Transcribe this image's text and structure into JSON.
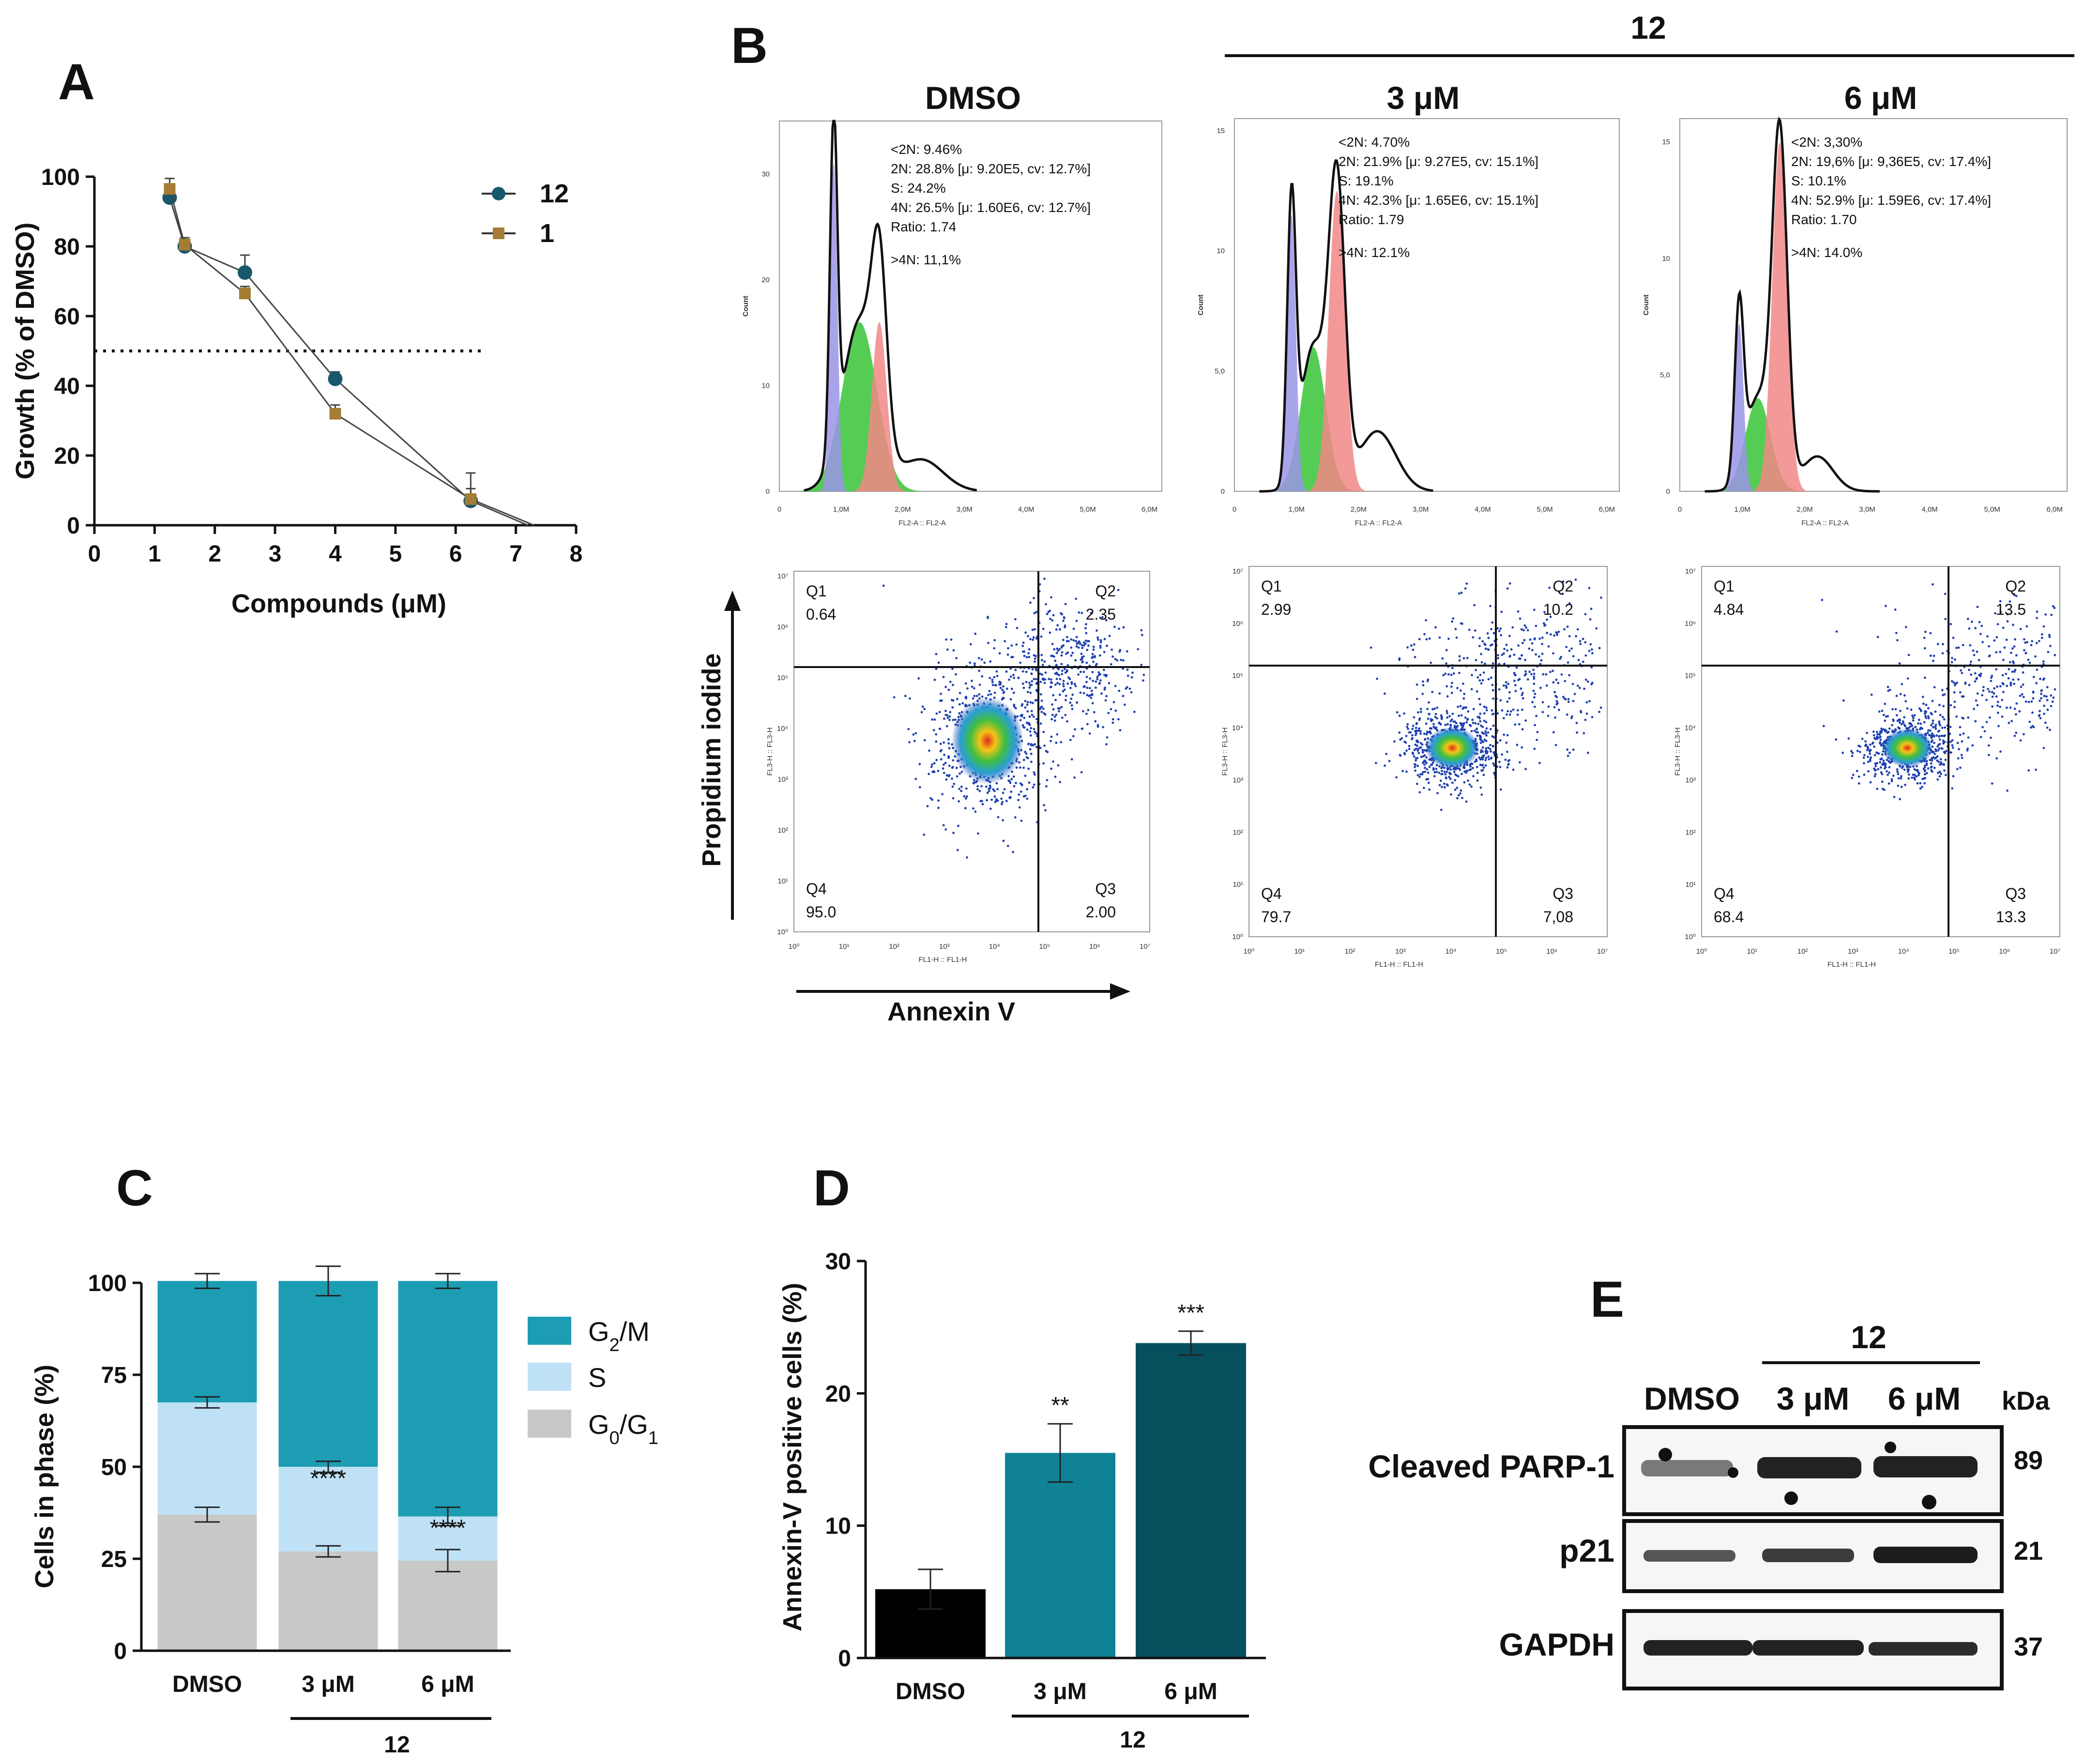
{
  "panel_labels": {
    "A": "A",
    "B": "B",
    "C": "C",
    "D": "D",
    "E": "E"
  },
  "colors": {
    "c12": "#17586b",
    "c1": "#a57c34",
    "g2m": "#1d9db3",
    "s": "#bfe1f5",
    "g01": "#c8c8c8",
    "d_dmso": "#000000",
    "d_3": "#0f8296",
    "d_6": "#06505e",
    "g1peak": "#9a94e6",
    "speak": "#37c437",
    "g2peak": "#f28787"
  },
  "chart_data": [
    {
      "panel": "A",
      "type": "line",
      "xlabel": "Compounds (μM)",
      "ylabel": "Growth (% of DMSO)",
      "xlim": [
        0,
        8
      ],
      "ylim": [
        0,
        100
      ],
      "xticks": [
        "0",
        "1",
        "2",
        "3",
        "4",
        "5",
        "6",
        "7",
        "8"
      ],
      "yticks": [
        "0",
        "20",
        "40",
        "60",
        "80",
        "100"
      ],
      "reference_line": {
        "y": 50,
        "style": "dotted"
      },
      "legend": [
        "12",
        "1"
      ],
      "series": [
        {
          "name": "12",
          "x": [
            1.25,
            1.5,
            2.5,
            4,
            6.25,
            7.2
          ],
          "y": [
            94,
            80,
            72.5,
            42,
            7,
            0
          ],
          "err": [
            3,
            2,
            5,
            2,
            8,
            0
          ]
        },
        {
          "name": "1",
          "x": [
            1.25,
            1.5,
            2.5,
            4,
            6.25,
            7.3
          ],
          "y": [
            96.5,
            80.5,
            66.5,
            32,
            7.5,
            0
          ],
          "err": [
            3,
            2,
            2,
            2.5,
            3,
            0
          ]
        }
      ]
    },
    {
      "panel": "B-cell-cycle",
      "type": "histogram",
      "column_labels": [
        "DMSO",
        "3 μM",
        "6 μM"
      ],
      "group_label": "12",
      "xlabel": "FL2-A :: FL2-A",
      "ylabel": "Count",
      "xticks": [
        "0",
        "1,0M",
        "2,0M",
        "3,0M",
        "4,0M",
        "5,0M",
        "6,0M"
      ],
      "samples": [
        {
          "name": "DMSO",
          "yticks": [
            "0",
            "10",
            "20",
            "30"
          ],
          "stats": [
            "<2N: 9.46%",
            "2N: 28.8%   [μ: 9.20E5, cv: 12.7%]",
            "S: 24.2%",
            "4N: 26.5%   [μ: 1.60E6, cv: 12.7%]",
            "Ratio: 1.74",
            ">4N: 11,1%"
          ]
        },
        {
          "name": "3 μM",
          "yticks": [
            "0",
            "5,0",
            "10",
            "15"
          ],
          "stats": [
            "<2N: 4.70%",
            "2N: 21.9%   [μ: 9.27E5, cv: 15.1%]",
            "S: 19.1%",
            "4N: 42.3%   [μ: 1.65E6, cv: 15.1%]",
            "Ratio: 1.79",
            ">4N: 12.1%"
          ]
        },
        {
          "name": "6 μM",
          "yticks": [
            "0",
            "5,0",
            "10",
            "15"
          ],
          "stats": [
            "<2N: 3,30%",
            "2N: 19,6%   [μ: 9,36E5, cv: 17.4%]",
            "S: 10.1%",
            "4N: 52.9%   [μ: 1.59E6, cv: 17.4%]",
            "Ratio: 1.70",
            ">4N: 14.0%"
          ]
        }
      ]
    },
    {
      "panel": "B-annexin",
      "type": "scatter",
      "xlabel": "Annexin V",
      "ylabel": "Propidium iodide",
      "axis_x_small": "FL1-H :: FL1-H",
      "axis_y_small": "FL3-H :: FL3-H",
      "ticks": [
        "10⁰",
        "10¹",
        "10²",
        "10³",
        "10⁴",
        "10⁵",
        "10⁶",
        "10⁷"
      ],
      "quadrant_names": [
        "Q1",
        "Q2",
        "Q3",
        "Q4"
      ],
      "samples": [
        {
          "name": "DMSO",
          "Q1": "0.64",
          "Q2": "2.35",
          "Q3": "2.00",
          "Q4": "95.0"
        },
        {
          "name": "3 μM",
          "Q1": "2.99",
          "Q2": "10.2",
          "Q3": "7,08",
          "Q4": "79.7"
        },
        {
          "name": "6 μM",
          "Q1": "4.84",
          "Q2": "13.5",
          "Q3": "13.3",
          "Q4": "68.4"
        }
      ]
    },
    {
      "panel": "C",
      "type": "bar",
      "stacked": true,
      "ylabel": "Cells in phase (%)",
      "categories": [
        "DMSO",
        "3 μM",
        "6 μM"
      ],
      "group_label": "12",
      "ylim": [
        0,
        100
      ],
      "yticks": [
        "0",
        "25",
        "50",
        "75",
        "100"
      ],
      "legend": [
        {
          "base": "G",
          "sub": "2",
          "rest": "/M"
        },
        {
          "base": "S",
          "sub": "",
          "rest": ""
        },
        {
          "base": "G",
          "sub": "0",
          "rest": "/G",
          "sub2": "1"
        }
      ],
      "series": [
        {
          "name": "G0/G1",
          "values": [
            37,
            27,
            24.5
          ],
          "err": [
            2,
            1.5,
            3
          ]
        },
        {
          "name": "S",
          "values": [
            30.5,
            23,
            12
          ],
          "err": [
            1.5,
            1.5,
            2.5
          ]
        },
        {
          "name": "G2/M",
          "values": [
            33,
            50.5,
            64
          ],
          "err": [
            2,
            4,
            2
          ]
        }
      ],
      "annotations": [
        "",
        "****",
        "****"
      ]
    },
    {
      "panel": "D",
      "type": "bar",
      "ylabel": "Annexin-V positive cells (%)",
      "categories": [
        "DMSO",
        "3 μM",
        "6 μM"
      ],
      "group_label": "12",
      "ylim": [
        0,
        30
      ],
      "yticks": [
        "0",
        "10",
        "20",
        "30"
      ],
      "values": [
        5.2,
        15.5,
        23.8
      ],
      "err": [
        1.5,
        2.2,
        0.9
      ],
      "annotations": [
        "",
        "**",
        "***"
      ]
    }
  ],
  "blot": {
    "group_label": "12",
    "lanes": [
      "DMSO",
      "3 μM",
      "6 μM"
    ],
    "kda_label": "kDa",
    "rows": [
      {
        "label": "Cleaved PARP-1",
        "kda": "89"
      },
      {
        "label": "p21",
        "kda": "21"
      },
      {
        "label": "GAPDH",
        "kda": "37"
      }
    ]
  }
}
